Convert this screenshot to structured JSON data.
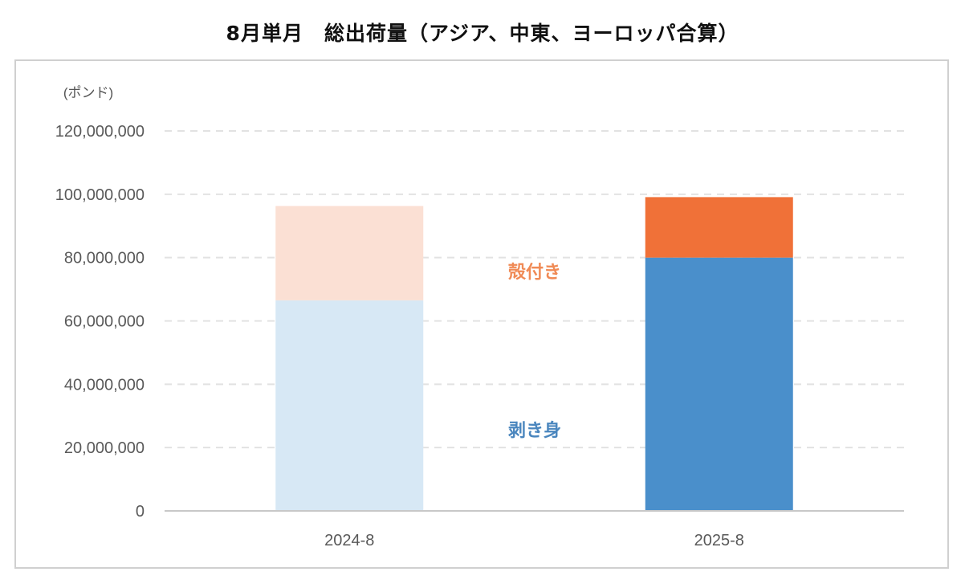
{
  "title": "8月単月　総出荷量（アジア、中東、ヨーロッパ合算）",
  "chart_data": {
    "type": "bar",
    "stacked": true,
    "title": "8月単月　総出荷量（アジア、中東、ヨーロッパ合算）",
    "unit_label": "(ポンド)",
    "categories": [
      "2024-8",
      "2025-8"
    ],
    "series": [
      {
        "name": "剥き身",
        "values": [
          66500000,
          80000000
        ],
        "colors": [
          "#d7e8f5",
          "#4a8fcb"
        ],
        "label_color": "#4a86be"
      },
      {
        "name": "殻付き",
        "values": [
          29800000,
          19100000
        ],
        "colors": [
          "#fbe0d4",
          "#f07138"
        ],
        "label_color": "#f08a55"
      }
    ],
    "ylim": [
      0,
      120000000
    ],
    "yticks": [
      0,
      20000000,
      40000000,
      60000000,
      80000000,
      100000000,
      120000000
    ],
    "ytick_labels": [
      "0",
      "20,000,000",
      "40,000,000",
      "60,000,000",
      "80,000,000",
      "100,000,000",
      "120,000,000"
    ],
    "grid": true,
    "grid_style": "dashed"
  }
}
